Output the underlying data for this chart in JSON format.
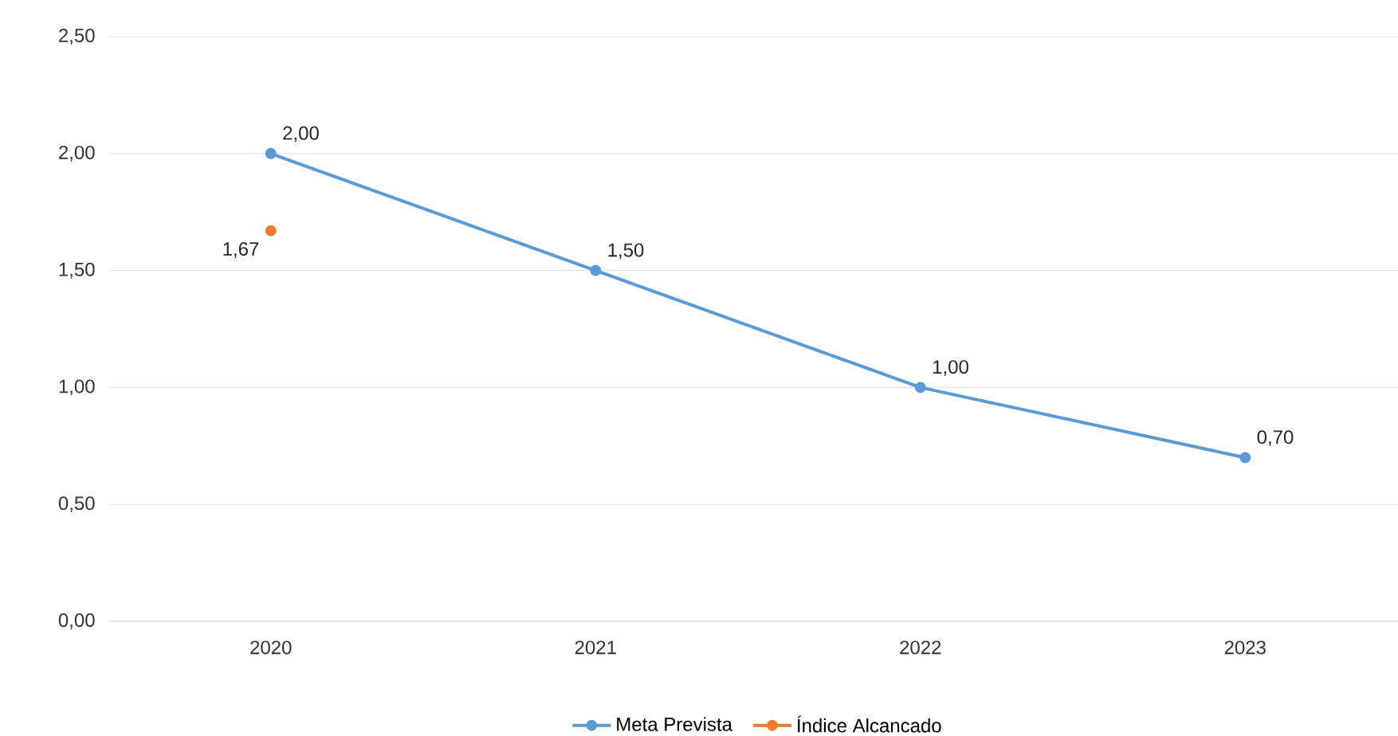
{
  "chart_data": {
    "type": "line",
    "categories": [
      "2020",
      "2021",
      "2022",
      "2023"
    ],
    "series": [
      {
        "name": "Meta Prevista",
        "color": "#5b9bd5",
        "values": [
          2.0,
          1.5,
          1.0,
          0.7
        ],
        "value_labels": [
          "2,00",
          "1,50",
          "1,00",
          "0,70"
        ]
      },
      {
        "name": "Índice Alcancado",
        "color": "#ed7d31",
        "values": [
          1.67,
          null,
          null,
          null
        ],
        "value_labels": [
          "1,67",
          null,
          null,
          null
        ]
      }
    ],
    "ylim": [
      0,
      2.5
    ],
    "yticks": [
      {
        "value": 0,
        "label": "0,00"
      },
      {
        "value": 0.5,
        "label": "0,50"
      },
      {
        "value": 1,
        "label": "1,00"
      },
      {
        "value": 1.5,
        "label": "1,50"
      },
      {
        "value": 2,
        "label": "2,00"
      },
      {
        "value": 2.5,
        "label": "2,50"
      }
    ],
    "grid": "y",
    "legend": "bottom",
    "marker": "circle",
    "line_style": "solid"
  }
}
